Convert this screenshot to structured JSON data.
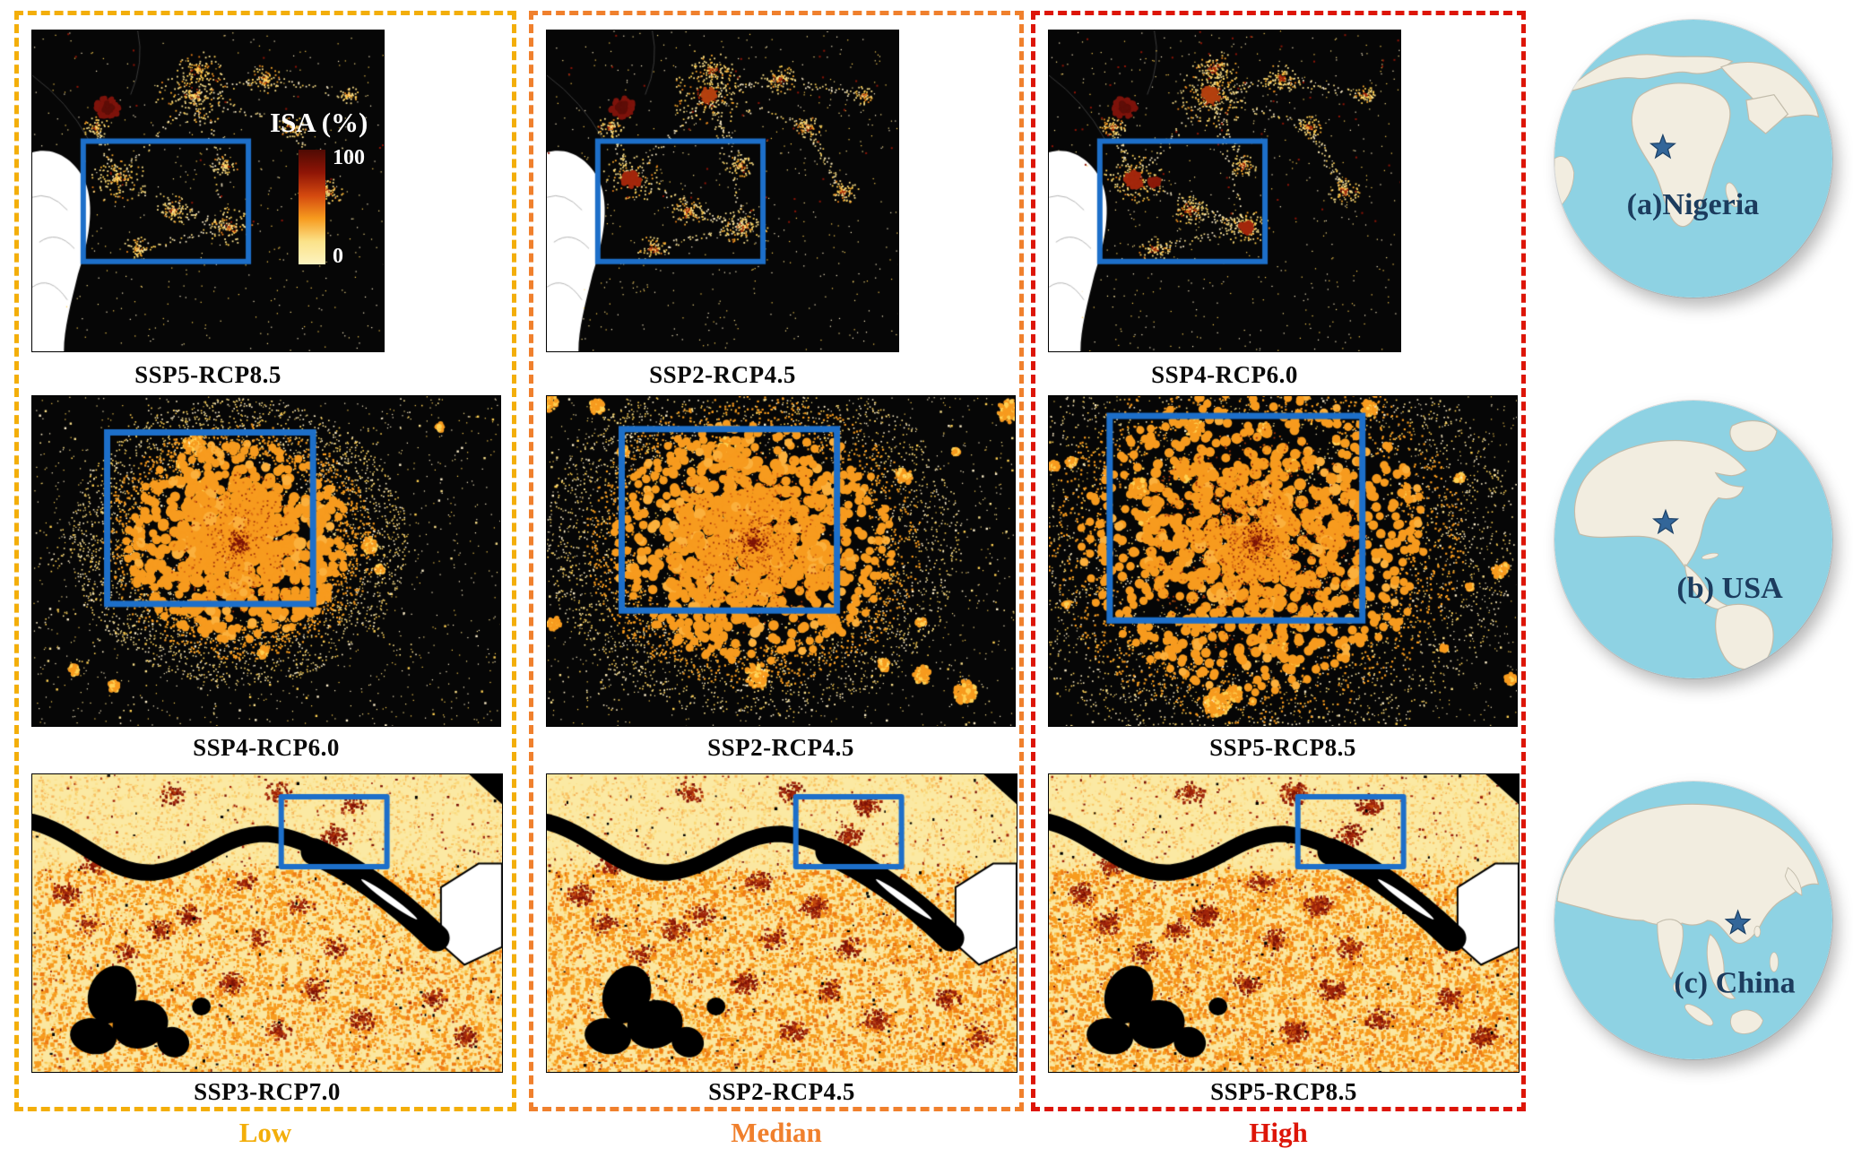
{
  "figure": {
    "legend": {
      "title": "ISA (%)",
      "max": "100",
      "min": "0",
      "gradient": [
        "#4f0a03",
        "#8f1506",
        "#d4490f",
        "#f79b1e",
        "#fbe289",
        "#fdf3c0"
      ]
    },
    "roi_color": "#1d6fc9",
    "columns": [
      {
        "label": "Low",
        "color": "#f3ae0a"
      },
      {
        "label": "Median",
        "color": "#f0802d"
      },
      {
        "label": "High",
        "color": "#dd1508"
      }
    ],
    "rows": [
      {
        "region": "Nigeria",
        "panels": [
          "SSP5-RCP8.5",
          "SSP2-RCP4.5",
          "SSP4-RCP6.0"
        ]
      },
      {
        "region": "USA",
        "panels": [
          "SSP4-RCP6.0",
          "SSP2-RCP4.5",
          "SSP5-RCP8.5"
        ]
      },
      {
        "region": "China",
        "panels": [
          "SSP3-RCP7.0",
          "SSP2-RCP4.5",
          "SSP5-RCP8.5"
        ]
      }
    ],
    "globes": [
      {
        "label": "(a)Nigeria"
      },
      {
        "label": "(b) USA"
      },
      {
        "label": "(c) China"
      }
    ]
  }
}
